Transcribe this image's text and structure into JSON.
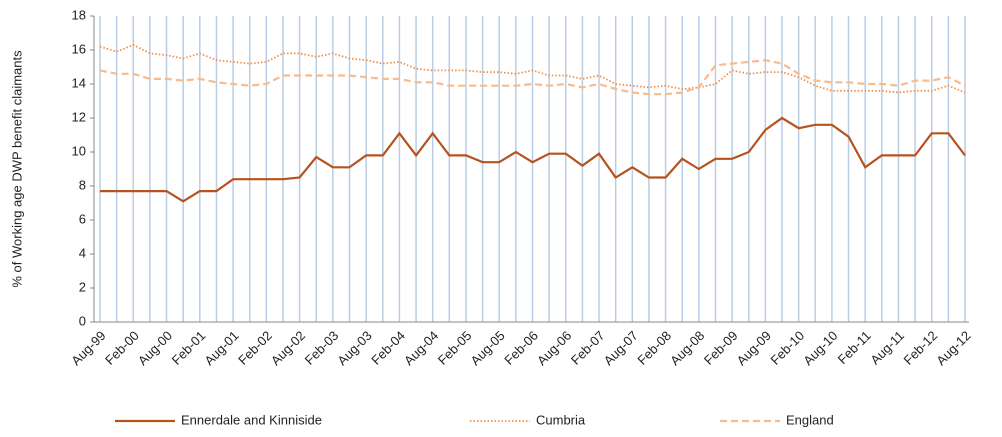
{
  "chart_data": {
    "type": "line",
    "y_label": "% of Working age DWP benefit claimants",
    "categories": [
      "Aug-99",
      null,
      "Feb-00",
      null,
      "Aug-00",
      null,
      "Feb-01",
      null,
      "Aug-01",
      null,
      "Feb-02",
      null,
      "Aug-02",
      null,
      "Feb-03",
      null,
      "Aug-03",
      null,
      "Feb-04",
      null,
      "Aug-04",
      null,
      "Feb-05",
      null,
      "Aug-05",
      null,
      "Feb-06",
      null,
      "Aug-06",
      null,
      "Feb-07",
      null,
      "Aug-07",
      null,
      "Feb-08",
      null,
      "Aug-08",
      null,
      "Feb-09",
      null,
      "Aug-09",
      null,
      "Feb-10",
      null,
      "Aug-10",
      null,
      "Feb-11",
      null,
      "Aug-11",
      null,
      "Feb-12",
      null,
      "Aug-12"
    ],
    "series": [
      {
        "name": "Ennerdale and Kinniside",
        "color": "#b5531f",
        "dash": "solid",
        "values": [
          7.7,
          7.7,
          7.7,
          7.7,
          7.7,
          7.1,
          7.7,
          7.7,
          8.4,
          8.4,
          8.4,
          8.4,
          8.5,
          9.7,
          9.1,
          9.1,
          9.8,
          9.8,
          11.1,
          9.8,
          11.1,
          9.8,
          9.8,
          9.4,
          9.4,
          10.0,
          9.4,
          9.9,
          9.9,
          9.2,
          9.9,
          8.5,
          9.1,
          8.5,
          8.5,
          9.6,
          9.0,
          9.6,
          9.6,
          10.0,
          11.3,
          12.0,
          11.4,
          11.6,
          11.6,
          10.9,
          9.1,
          9.8,
          9.8,
          9.8,
          11.1,
          11.1,
          9.8
        ]
      },
      {
        "name": "Cumbria",
        "color": "#f0904a",
        "dash": "dotted",
        "values": [
          16.2,
          15.9,
          16.3,
          15.8,
          15.7,
          15.5,
          15.8,
          15.4,
          15.3,
          15.2,
          15.3,
          15.8,
          15.8,
          15.6,
          15.8,
          15.5,
          15.4,
          15.2,
          15.3,
          14.9,
          14.8,
          14.8,
          14.8,
          14.7,
          14.7,
          14.6,
          14.8,
          14.5,
          14.5,
          14.3,
          14.5,
          14.0,
          13.9,
          13.8,
          13.9,
          13.7,
          13.8,
          14.0,
          14.8,
          14.6,
          14.7,
          14.7,
          14.4,
          13.9,
          13.6,
          13.6,
          13.6,
          13.6,
          13.5,
          13.6,
          13.6,
          13.9,
          13.5
        ]
      },
      {
        "name": "England",
        "color": "#f8bb8c",
        "dash": "dashed",
        "values": [
          14.8,
          14.6,
          14.6,
          14.3,
          14.3,
          14.2,
          14.3,
          14.1,
          14.0,
          13.9,
          14.0,
          14.5,
          14.5,
          14.5,
          14.5,
          14.5,
          14.4,
          14.3,
          14.3,
          14.1,
          14.1,
          13.9,
          13.9,
          13.9,
          13.9,
          13.9,
          14.0,
          13.9,
          14.0,
          13.8,
          14.0,
          13.7,
          13.5,
          13.4,
          13.4,
          13.5,
          13.8,
          15.1,
          15.2,
          15.3,
          15.4,
          15.2,
          14.6,
          14.2,
          14.1,
          14.1,
          14.0,
          14.0,
          13.9,
          14.2,
          14.2,
          14.4,
          13.9
        ]
      }
    ],
    "ylim": [
      0,
      18
    ],
    "yticks": [
      0,
      2,
      4,
      6,
      8,
      10,
      12,
      14,
      16,
      18
    ],
    "grid": "x",
    "legend": "bottom"
  }
}
